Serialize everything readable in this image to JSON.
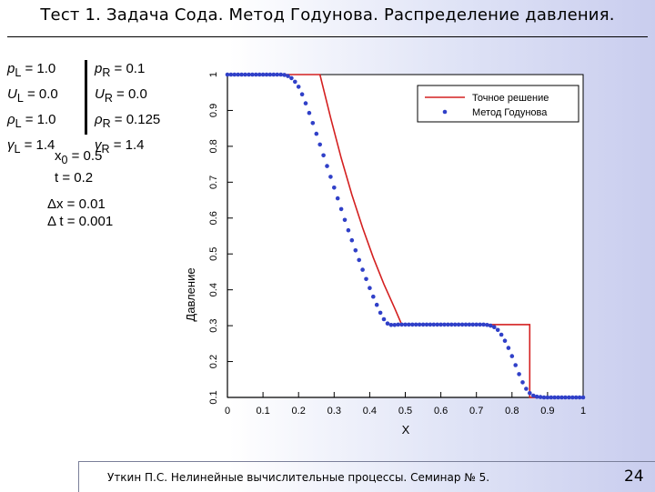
{
  "slide": {
    "title": "Тест 1. Задача Сода. Метод Годунова. Распределение давления.",
    "footer": "Уткин П.С. Нелинейные вычислительные процессы. Семинар № 5.",
    "page_number": "24"
  },
  "params": {
    "left": [
      {
        "sym": "p",
        "sub": "L",
        "val": " = 1.0"
      },
      {
        "sym": "U",
        "sub": "L",
        "val": " = 0.0"
      },
      {
        "sym": "ρ",
        "sub": "L",
        "val": " = 1.0"
      },
      {
        "sym": "γ",
        "sub": "L",
        "val": " = 1.4"
      }
    ],
    "right": [
      {
        "sym": "p",
        "sub": "R",
        "val": " = 0.1"
      },
      {
        "sym": "U",
        "sub": "R",
        "val": " = 0.0"
      },
      {
        "sym": "ρ",
        "sub": "R",
        "val": " = 0.125"
      },
      {
        "sym": "γ",
        "sub": "R",
        "val": " = 1.4"
      }
    ],
    "x0": {
      "sym": "x",
      "sub": "0",
      "val": " = 0.5"
    },
    "t": "t = 0.2",
    "dx": "Δx = 0.01",
    "dt": "Δ t = 0.001"
  },
  "chart_data": {
    "type": "line",
    "xlabel": "X",
    "ylabel": "Давление",
    "xlim": [
      0,
      1
    ],
    "ylim": [
      0.1,
      1.0
    ],
    "xticks": [
      0,
      0.1,
      0.2,
      0.3,
      0.4,
      0.5,
      0.6,
      0.7,
      0.8,
      0.9,
      1
    ],
    "xtick_labels": [
      "0",
      "0.1",
      "0.2",
      "0.3",
      "0.4",
      "0.5",
      "0.6",
      "0.7",
      "0.8",
      "0.9",
      "1"
    ],
    "yticks": [
      0.1,
      0.2,
      0.3,
      0.4,
      0.5,
      0.6,
      0.7,
      0.8,
      0.9,
      1.0
    ],
    "ytick_labels": [
      "0.1",
      "0.2",
      "0.3",
      "0.4",
      "0.5",
      "0.6",
      "0.7",
      "0.8",
      "0.9",
      "1"
    ],
    "legend_position": "top-right",
    "series": [
      {
        "name": "Точное решение",
        "style": "line",
        "color": "#d42020",
        "x": [
          0,
          0.05,
          0.1,
          0.15,
          0.2,
          0.26,
          0.29,
          0.32,
          0.35,
          0.38,
          0.41,
          0.44,
          0.47,
          0.49,
          0.69,
          0.85,
          0.85,
          1.0
        ],
        "y": [
          1.0,
          1.0,
          1.0,
          1.0,
          1.0,
          1.0,
          0.88,
          0.767,
          0.665,
          0.573,
          0.49,
          0.416,
          0.349,
          0.303,
          0.303,
          0.303,
          0.1,
          0.1
        ]
      },
      {
        "name": "Метод Годунова",
        "style": "markers",
        "color": "#3040c8",
        "x": [
          0.0,
          0.01,
          0.02,
          0.03,
          0.04,
          0.05,
          0.06,
          0.07,
          0.08,
          0.09,
          0.1,
          0.11,
          0.12,
          0.13,
          0.14,
          0.15,
          0.16,
          0.17,
          0.18,
          0.19,
          0.2,
          0.21,
          0.22,
          0.23,
          0.24,
          0.25,
          0.26,
          0.27,
          0.28,
          0.29,
          0.3,
          0.31,
          0.32,
          0.33,
          0.34,
          0.35,
          0.36,
          0.37,
          0.38,
          0.39,
          0.4,
          0.41,
          0.42,
          0.43,
          0.44,
          0.45,
          0.46,
          0.47,
          0.48,
          0.49,
          0.5,
          0.51,
          0.52,
          0.53,
          0.54,
          0.55,
          0.56,
          0.57,
          0.58,
          0.59,
          0.6,
          0.61,
          0.62,
          0.63,
          0.64,
          0.65,
          0.66,
          0.67,
          0.68,
          0.69,
          0.7,
          0.71,
          0.72,
          0.73,
          0.74,
          0.75,
          0.76,
          0.77,
          0.78,
          0.79,
          0.8,
          0.81,
          0.82,
          0.83,
          0.84,
          0.85,
          0.86,
          0.87,
          0.88,
          0.89,
          0.9,
          0.91,
          0.92,
          0.93,
          0.94,
          0.95,
          0.96,
          0.97,
          0.98,
          0.99,
          1.0
        ],
        "y": [
          1.0,
          1.0,
          1.0,
          1.0,
          1.0,
          1.0,
          1.0,
          1.0,
          1.0,
          1.0,
          1.0,
          1.0,
          1.0,
          1.0,
          1.0,
          1.0,
          0.999,
          0.996,
          0.99,
          0.98,
          0.966,
          0.945,
          0.92,
          0.893,
          0.865,
          0.835,
          0.805,
          0.775,
          0.745,
          0.715,
          0.685,
          0.655,
          0.625,
          0.595,
          0.566,
          0.538,
          0.51,
          0.483,
          0.456,
          0.43,
          0.405,
          0.381,
          0.358,
          0.336,
          0.318,
          0.306,
          0.302,
          0.302,
          0.303,
          0.303,
          0.303,
          0.303,
          0.303,
          0.303,
          0.303,
          0.303,
          0.303,
          0.303,
          0.303,
          0.303,
          0.303,
          0.303,
          0.303,
          0.303,
          0.303,
          0.303,
          0.303,
          0.303,
          0.303,
          0.303,
          0.303,
          0.303,
          0.303,
          0.302,
          0.3,
          0.296,
          0.288,
          0.275,
          0.258,
          0.238,
          0.215,
          0.19,
          0.165,
          0.142,
          0.124,
          0.112,
          0.105,
          0.102,
          0.101,
          0.1,
          0.1,
          0.1,
          0.1,
          0.1,
          0.1,
          0.1,
          0.1,
          0.1,
          0.1,
          0.1,
          0.1
        ]
      }
    ]
  }
}
